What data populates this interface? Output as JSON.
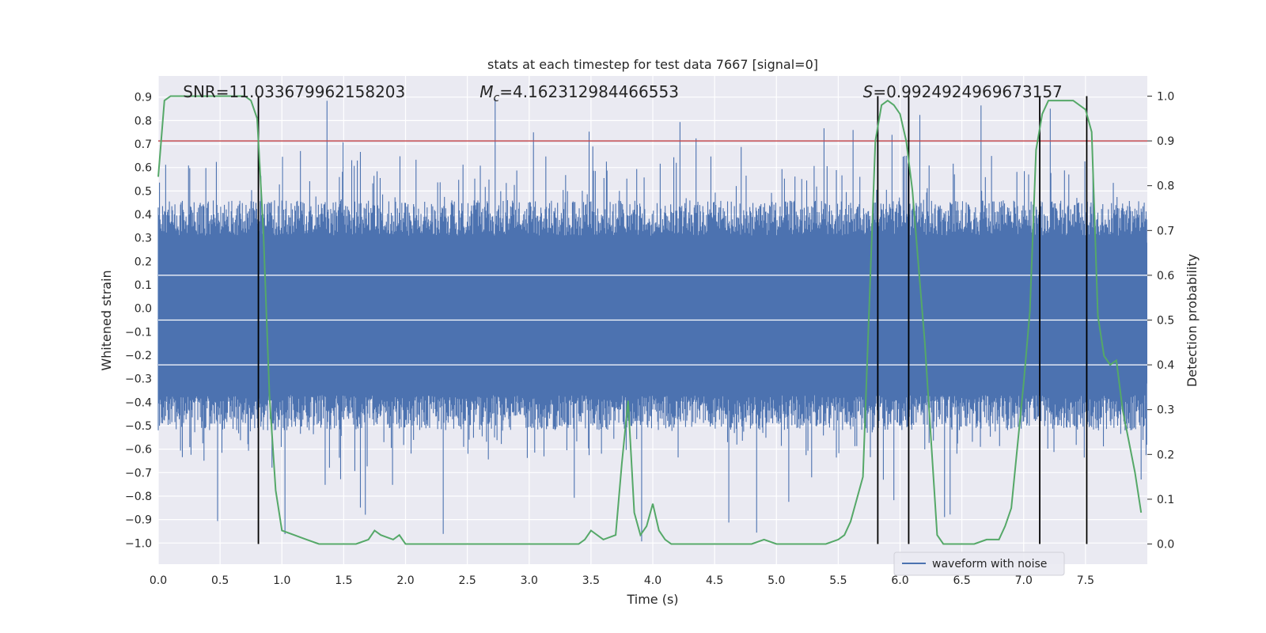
{
  "chart_data": {
    "type": "line",
    "title": "stats at each timestep for test data 7667 [signal=0]",
    "xlabel": "Time (s)",
    "ylabel_left": "Whitened strain",
    "ylabel_right": "Detection probability",
    "xlim": [
      0.0,
      8.0
    ],
    "ylim_left": [
      -1.09,
      0.99
    ],
    "ylim_right": [
      -0.045,
      1.045
    ],
    "x_ticks": [
      0.0,
      0.5,
      1.0,
      1.5,
      2.0,
      2.5,
      3.0,
      3.5,
      4.0,
      4.5,
      5.0,
      5.5,
      6.0,
      6.5,
      7.0,
      7.5
    ],
    "x_tick_labels": [
      "0.0",
      "0.5",
      "1.0",
      "1.5",
      "2.0",
      "2.5",
      "3.0",
      "3.5",
      "4.0",
      "4.5",
      "5.0",
      "5.5",
      "6.0",
      "6.5",
      "7.0",
      "7.5"
    ],
    "y_left_ticks": [
      -1.0,
      -0.9,
      -0.8,
      -0.7,
      -0.6,
      -0.5,
      -0.4,
      -0.3,
      -0.2,
      -0.1,
      0.0,
      0.1,
      0.2,
      0.3,
      0.4,
      0.5,
      0.6,
      0.7,
      0.8,
      0.9
    ],
    "y_left_tick_labels": [
      "−1.0",
      "−0.9",
      "−0.8",
      "−0.7",
      "−0.6",
      "−0.5",
      "−0.4",
      "−0.3",
      "−0.2",
      "−0.1",
      "0.0",
      "0.1",
      "0.2",
      "0.3",
      "0.4",
      "0.5",
      "0.6",
      "0.7",
      "0.8",
      "0.9"
    ],
    "y_right_ticks": [
      0.0,
      0.1,
      0.2,
      0.3,
      0.4,
      0.5,
      0.6,
      0.7,
      0.8,
      0.9,
      1.0
    ],
    "y_right_tick_labels": [
      "0.0",
      "0.1",
      "0.2",
      "0.3",
      "0.4",
      "0.5",
      "0.6",
      "0.7",
      "0.8",
      "0.9",
      "1.0"
    ],
    "annotations": {
      "snr": "SNR=11.033679962158203",
      "mc_symbol": "M",
      "mc_subscript": "c",
      "mc_value": "=4.162312984466553",
      "s_symbol": "S",
      "s_value": "=0.9924924969673157"
    },
    "annotation_x": [
      0.2,
      2.6,
      5.7
    ],
    "legend": {
      "label": "waveform with noise",
      "placement": "lower-right"
    },
    "waveform": {
      "name": "waveform with noise",
      "noise_band": [
        -0.42,
        0.36
      ],
      "spike_max": 0.9,
      "spike_min": -1.0,
      "sample_count": 1600
    },
    "threshold": {
      "value": 0.9,
      "axis": "right",
      "color": "#c44e52"
    },
    "vertical_lines_x": [
      0.81,
      5.82,
      6.07,
      7.13,
      7.51
    ],
    "detection_probability": {
      "x": [
        0.0,
        0.05,
        0.1,
        0.15,
        0.2,
        0.3,
        0.4,
        0.5,
        0.6,
        0.7,
        0.75,
        0.8,
        0.85,
        0.9,
        0.95,
        1.0,
        1.1,
        1.2,
        1.3,
        1.4,
        1.5,
        1.6,
        1.7,
        1.75,
        1.8,
        1.9,
        1.95,
        2.0,
        2.1,
        2.2,
        2.4,
        2.6,
        2.8,
        3.0,
        3.2,
        3.4,
        3.45,
        3.5,
        3.6,
        3.7,
        3.75,
        3.8,
        3.85,
        3.9,
        3.95,
        4.0,
        4.05,
        4.1,
        4.15,
        4.2,
        4.3,
        4.4,
        4.5,
        4.6,
        4.7,
        4.8,
        4.9,
        5.0,
        5.1,
        5.2,
        5.3,
        5.4,
        5.5,
        5.55,
        5.6,
        5.7,
        5.8,
        5.85,
        5.9,
        5.95,
        6.0,
        6.05,
        6.1,
        6.15,
        6.2,
        6.3,
        6.35,
        6.4,
        6.5,
        6.6,
        6.7,
        6.8,
        6.85,
        6.9,
        7.0,
        7.05,
        7.1,
        7.15,
        7.2,
        7.25,
        7.3,
        7.4,
        7.5,
        7.55,
        7.6,
        7.65,
        7.7,
        7.75,
        7.8,
        7.9,
        7.95
      ],
      "y": [
        0.82,
        0.99,
        1.0,
        1.0,
        1.0,
        1.0,
        1.0,
        1.0,
        1.0,
        1.0,
        0.99,
        0.95,
        0.7,
        0.33,
        0.12,
        0.03,
        0.02,
        0.01,
        0.0,
        0.0,
        0.0,
        0.0,
        0.01,
        0.03,
        0.02,
        0.01,
        0.02,
        0.0,
        0.0,
        0.0,
        0.0,
        0.0,
        0.0,
        0.0,
        0.0,
        0.0,
        0.01,
        0.03,
        0.01,
        0.02,
        0.18,
        0.32,
        0.07,
        0.02,
        0.04,
        0.09,
        0.03,
        0.01,
        0.0,
        0.0,
        0.0,
        0.0,
        0.0,
        0.0,
        0.0,
        0.0,
        0.01,
        0.0,
        0.0,
        0.0,
        0.0,
        0.0,
        0.01,
        0.02,
        0.05,
        0.15,
        0.9,
        0.98,
        0.99,
        0.98,
        0.96,
        0.9,
        0.79,
        0.62,
        0.45,
        0.02,
        0.0,
        0.0,
        0.0,
        0.0,
        0.01,
        0.01,
        0.04,
        0.08,
        0.36,
        0.52,
        0.88,
        0.96,
        0.99,
        0.99,
        0.99,
        0.99,
        0.97,
        0.92,
        0.51,
        0.42,
        0.4,
        0.41,
        0.3,
        0.16,
        0.07
      ]
    }
  }
}
